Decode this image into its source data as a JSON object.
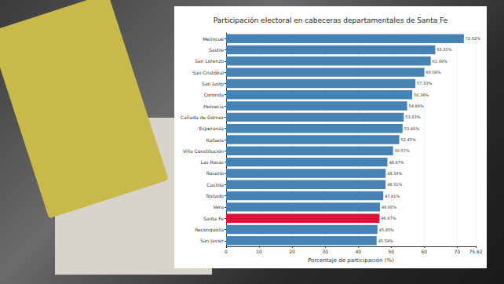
{
  "chart_data": {
    "type": "bar",
    "orientation": "horizontal",
    "title": "Participación electoral en cabeceras departamentales de Santa Fe",
    "x_label": "Porcentaje de participación (%)",
    "categories": [
      "Melincué",
      "Sastre",
      "San Lorenzo",
      "San Cristóbal",
      "San Justo",
      "Coronda",
      "Helvecia",
      "Cañada de Gómez",
      "Esperanza",
      "Rafaela",
      "Villa Constitución",
      "Las Rosas",
      "Rosario",
      "Casilda",
      "Tostado",
      "Vera",
      "Santa Fe",
      "Reconquista",
      "San Javier"
    ],
    "values": [
      72.02,
      63.35,
      61.99,
      60.04,
      57.33,
      56.36,
      54.84,
      53.83,
      53.46,
      52.45,
      50.57,
      48.87,
      48.33,
      48.31,
      47.61,
      46.6,
      46.47,
      45.85,
      45.59
    ],
    "value_labels": [
      "72.02%",
      "63.35%",
      "61.99%",
      "60.04%",
      "57.33%",
      "56.36%",
      "54.84%",
      "53.83%",
      "53.46%",
      "52.45%",
      "50.57%",
      "48.87%",
      "48.33%",
      "48.31%",
      "47.61%",
      "46.60%",
      "46.47%",
      "45.85%",
      "45.59%"
    ],
    "colors": [
      "#4682b4",
      "#4682b4",
      "#4682b4",
      "#4682b4",
      "#4682b4",
      "#4682b4",
      "#4682b4",
      "#4682b4",
      "#4682b4",
      "#4682b4",
      "#4682b4",
      "#4682b4",
      "#4682b4",
      "#4682b4",
      "#4682b4",
      "#4682b4",
      "#dc143c",
      "#4682b4",
      "#4682b4"
    ],
    "data_labels": true,
    "xlim": [
      0,
      75.62
    ],
    "xticks": [
      0,
      10,
      20,
      30,
      40,
      50,
      60,
      70
    ],
    "grid": true
  }
}
